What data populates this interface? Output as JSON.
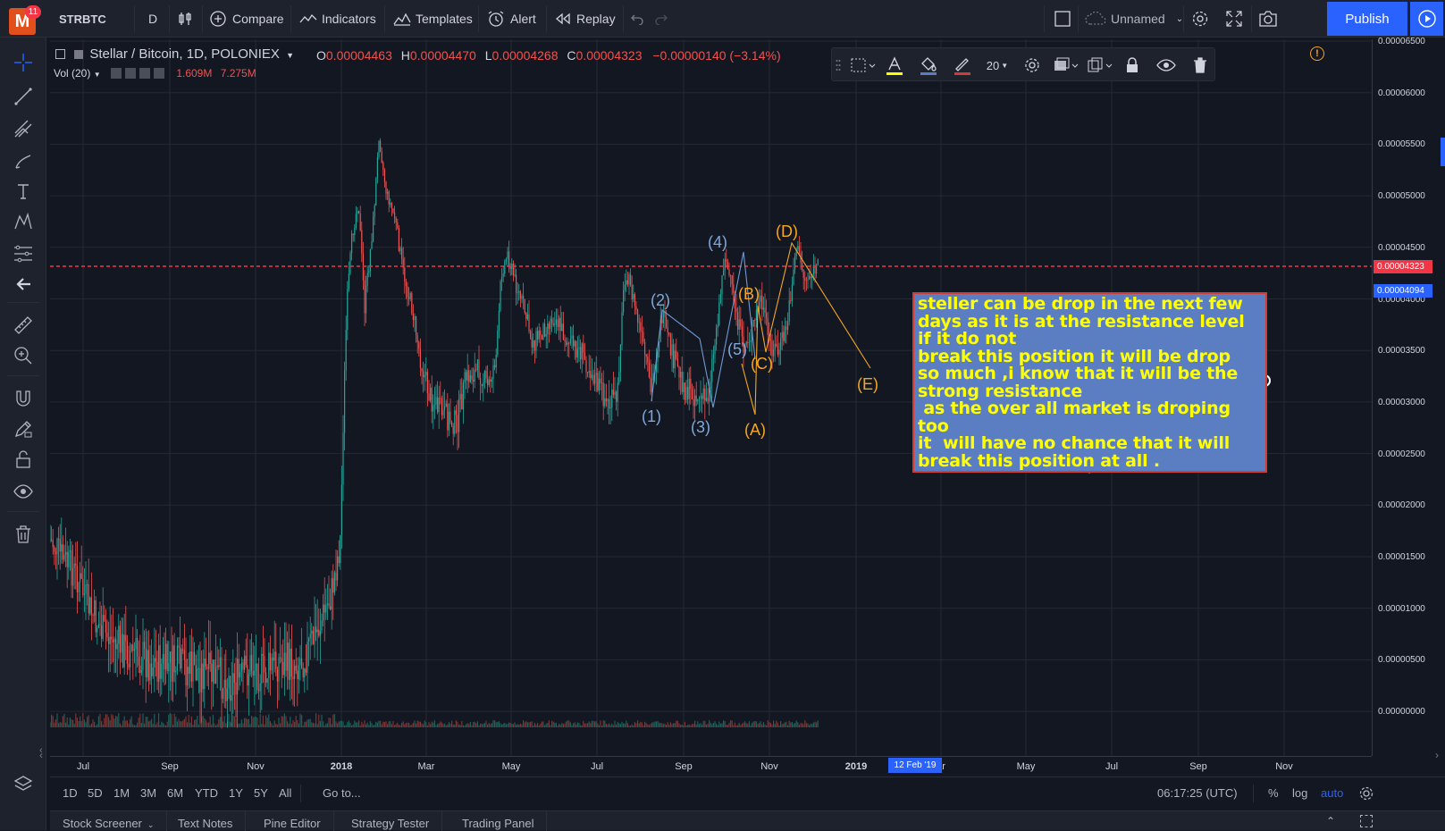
{
  "topbar": {
    "badge": "11",
    "logo": "M",
    "symbol": "STRBTC",
    "interval": "D",
    "compare": "Compare",
    "indicators": "Indicators",
    "templates": "Templates",
    "alert": "Alert",
    "replay": "Replay",
    "layout_name": "Unnamed",
    "publish": "Publish"
  },
  "legend": {
    "title": "Stellar / Bitcoin, 1D, POLONIEX",
    "o_label": "O",
    "o": "0.00004463",
    "h_label": "H",
    "h": "0.00004470",
    "l_label": "L",
    "l": "0.00004268",
    "c_label": "C",
    "c": "0.00004323",
    "change": "−0.00000140 (−3.14%)",
    "vol_label": "Vol (20)",
    "vol1": "1.609M",
    "vol2": "7.275M"
  },
  "drawing_toolbar": {
    "line_width": "20"
  },
  "price_axis": {
    "labels": [
      "0.00006500",
      "0.00006000",
      "0.00005500",
      "0.00005000",
      "0.00004500",
      "0.00004000",
      "0.00003500",
      "0.00003000",
      "0.00002500",
      "0.00002000",
      "0.00001500",
      "0.00001000",
      "0.00000500",
      "0.00000000"
    ],
    "last_price": "0.00004323",
    "marker_price": "0.00004094"
  },
  "time_axis": {
    "labels": [
      {
        "t": "Jul",
        "bold": false
      },
      {
        "t": "Sep",
        "bold": false
      },
      {
        "t": "Nov",
        "bold": false
      },
      {
        "t": "2018",
        "bold": true
      },
      {
        "t": "Mar",
        "bold": false
      },
      {
        "t": "May",
        "bold": false
      },
      {
        "t": "Jul",
        "bold": false
      },
      {
        "t": "Sep",
        "bold": false
      },
      {
        "t": "Nov",
        "bold": false
      },
      {
        "t": "2019",
        "bold": true
      },
      {
        "t": "ar",
        "bold": false
      },
      {
        "t": "May",
        "bold": false
      },
      {
        "t": "Jul",
        "bold": false
      },
      {
        "t": "Sep",
        "bold": false
      },
      {
        "t": "Nov",
        "bold": false
      }
    ],
    "cursor_date": "12 Feb '19"
  },
  "waves": {
    "blue": [
      "(1)",
      "(2)",
      "(3)",
      "(4)",
      "(5)"
    ],
    "orange": [
      "(A)",
      "(B)",
      "(C)",
      "(D)",
      "(E)"
    ]
  },
  "note_text": [
    "steller can be drop in the next few",
    "days as it is at the resistance level",
    "if it do not",
    "break this position it will be drop",
    "so much ,i know that it will be the",
    "strong resistance",
    " as the over all market is droping",
    "too",
    "it  will have no chance that it will",
    "break this position at all ."
  ],
  "bottombar": {
    "ranges": [
      "1D",
      "5D",
      "1M",
      "3M",
      "6M",
      "YTD",
      "1Y",
      "5Y",
      "All"
    ],
    "goto": "Go to...",
    "clock": "06:17:25 (UTC)",
    "percent": "%",
    "log": "log",
    "auto": "auto"
  },
  "panel_tabs": [
    "Stock Screener",
    "Text Notes",
    "Pine Editor",
    "Strategy Tester",
    "Trading Panel"
  ],
  "colors": {
    "bull": "#26a69a",
    "bear": "#ef5350",
    "wave_blue": "#7fa7d9",
    "wave_orange": "#f5a623",
    "resistance": "#f23645",
    "note_bg": "#5b7ec2",
    "note_text": "#ffff00"
  },
  "icons": [
    "crosshair-icon",
    "trend-line-icon",
    "pitchfork-icon",
    "brush-icon",
    "text-icon",
    "pattern-icon",
    "fib-icon",
    "back-arrow-icon",
    "ruler-icon",
    "zoom-icon",
    "magnet-icon",
    "lock-draw-icon",
    "unlock-icon",
    "eye-icon",
    "trash-icon"
  ]
}
